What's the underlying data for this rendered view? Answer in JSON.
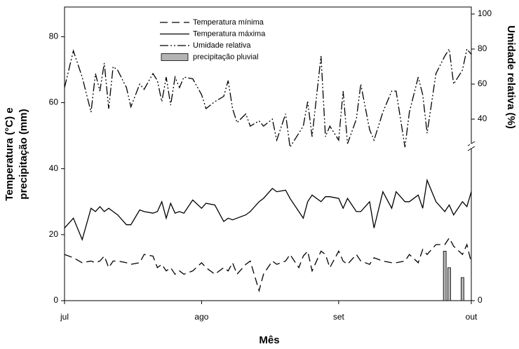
{
  "chart_data": {
    "type": "line",
    "xlabel": "Mês",
    "ylabel": [
      "Temperatura (°C) e",
      "precipitação (mm)"
    ],
    "y2label": "Umidade relativa (%)",
    "x": [
      0,
      2,
      4,
      6,
      7,
      8,
      9,
      10,
      11,
      12,
      14,
      15,
      17,
      18,
      20,
      21,
      22,
      23,
      24,
      25,
      26,
      27,
      29,
      31,
      32,
      34,
      36,
      37,
      38,
      39,
      41,
      42,
      44,
      45,
      47,
      48,
      50,
      51,
      53,
      54,
      55,
      56,
      58,
      59,
      60,
      62,
      63,
      64,
      66,
      67,
      69,
      70,
      72,
      74,
      75,
      77,
      78,
      80,
      81,
      82,
      84,
      86,
      87,
      88,
      90,
      91,
      92
    ],
    "xlim": [
      0,
      92
    ],
    "xticks": [
      {
        "value": 0,
        "label": "jul"
      },
      {
        "value": 31,
        "label": "ago"
      },
      {
        "value": 62,
        "label": "set"
      },
      {
        "value": 92,
        "label": "out"
      }
    ],
    "ylim": [
      0,
      89
    ],
    "yticks": [
      0,
      20,
      40,
      60,
      80
    ],
    "y2lim": [
      15,
      104
    ],
    "y2ticks": [
      0,
      40,
      60,
      80,
      100
    ],
    "series": [
      {
        "name": "Temperatura mínima",
        "color": "#000000",
        "style": "dashed",
        "values": [
          14,
          13,
          11.5,
          12,
          11.5,
          12,
          13.5,
          10,
          12,
          12,
          11.5,
          11,
          11.5,
          14,
          13.5,
          10,
          11,
          9,
          10,
          8,
          9,
          8,
          9,
          11.5,
          10,
          8,
          10,
          9,
          11.5,
          8,
          11,
          12,
          3,
          8,
          12,
          11,
          12,
          14,
          10,
          13.5,
          15,
          9,
          15,
          14,
          10,
          15,
          12,
          11,
          14,
          12,
          11,
          13,
          12,
          11.5,
          11.5,
          12,
          14,
          11.5,
          15.5,
          14,
          17,
          17,
          19,
          16.5,
          14,
          17,
          11.5
        ]
      },
      {
        "name": "Temperatura máxima",
        "color": "#000000",
        "style": "solid",
        "values": [
          22,
          25,
          18.5,
          28,
          27,
          28.5,
          27,
          28,
          27,
          26,
          23,
          23,
          27.5,
          27,
          26.5,
          27,
          30,
          25,
          29.5,
          26.5,
          27,
          26.5,
          30.5,
          28,
          29.5,
          29,
          24,
          25,
          24.5,
          25,
          26,
          27,
          30,
          31,
          34,
          33,
          33.5,
          31,
          27,
          25,
          30,
          32,
          30,
          31.5,
          31.5,
          31,
          28,
          31,
          27,
          27,
          30,
          22,
          33,
          28,
          33,
          30,
          30,
          32,
          28,
          36.5,
          30,
          27,
          29,
          26,
          30,
          28.5,
          33
        ]
      },
      {
        "name": "Umidade relativa",
        "color": "#000000",
        "style": "dashdotdot",
        "axis": "y2",
        "values": [
          58,
          79,
          64,
          44,
          66,
          56,
          72,
          46,
          70,
          68,
          58,
          47,
          60,
          57,
          66,
          62,
          50,
          64,
          48,
          64,
          58,
          64,
          63,
          54,
          46,
          50,
          53,
          62,
          46,
          38,
          43,
          36,
          39,
          36,
          40,
          28,
          43,
          24,
          32,
          36,
          50,
          30,
          76,
          30,
          36,
          28,
          56,
          26,
          40,
          60,
          34,
          28,
          44,
          56,
          56,
          24,
          44,
          64,
          54,
          32,
          66,
          76,
          80,
          60,
          68,
          80,
          77
        ]
      },
      {
        "name": "precipitação pluvial",
        "color": "#b4b4b4",
        "style": "bar",
        "values": [
          null,
          null,
          null,
          null,
          null,
          null,
          null,
          null,
          null,
          null,
          null,
          null,
          null,
          null,
          null,
          null,
          null,
          null,
          null,
          null,
          null,
          null,
          null,
          null,
          null,
          null,
          null,
          null,
          null,
          null,
          null,
          null,
          null,
          null,
          null,
          null,
          null,
          null,
          null,
          null,
          null,
          null,
          null,
          null,
          null,
          null,
          null,
          null,
          null,
          null,
          null,
          null,
          null,
          null,
          null,
          null,
          null,
          null,
          null,
          null,
          null,
          15,
          10,
          null,
          7,
          null,
          null
        ]
      }
    ]
  }
}
